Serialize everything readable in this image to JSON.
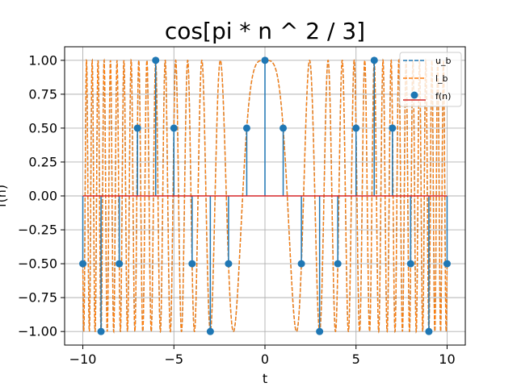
{
  "chart_data": {
    "type": "line",
    "title": "cos[pi * n ^ 2 / 3]",
    "xlabel": "t",
    "ylabel": "f(n)",
    "xlim": [
      -11,
      11
    ],
    "ylim": [
      -1.1,
      1.1
    ],
    "grid": true,
    "legend_placement": "top-right",
    "xticks": [
      -10,
      -5,
      0,
      5,
      10
    ],
    "xtick_labels": [
      "−10",
      "−5",
      "0",
      "5",
      "10"
    ],
    "yticks": [
      1.0,
      0.75,
      0.5,
      0.25,
      0.0,
      -0.25,
      -0.5,
      -0.75,
      -1.0
    ],
    "ytick_labels": [
      "1.00",
      "0.75",
      "0.50",
      "0.25",
      "0.00",
      "−0.25",
      "−0.50",
      "−0.75",
      "−1.00"
    ],
    "series": [
      {
        "name": "u_b",
        "kind": "dashed-line",
        "color": "#1f77b4",
        "function": "cos(pi*t^2/3)",
        "t_range": [
          -10,
          10
        ]
      },
      {
        "name": "l_b",
        "kind": "dashed-line",
        "color": "#ff7f0e",
        "function": "cos(pi*t^2/3)",
        "t_range": [
          -10,
          10
        ]
      },
      {
        "name": "f(n)",
        "kind": "stem",
        "marker_color": "#1f77b4",
        "baseline_color": "#d62728",
        "x": [
          -10,
          -9,
          -8,
          -7,
          -6,
          -5,
          -4,
          -3,
          -2,
          -1,
          0,
          1,
          2,
          3,
          4,
          5,
          6,
          7,
          8,
          9,
          10
        ],
        "y": [
          -0.5,
          -1.0,
          -0.5,
          0.5,
          1.0,
          0.5,
          -0.5,
          -1.0,
          -0.5,
          0.5,
          1.0,
          0.5,
          -0.5,
          -1.0,
          -0.5,
          0.5,
          1.0,
          0.5,
          -0.5,
          -1.0,
          -0.5
        ]
      }
    ],
    "legend": [
      {
        "label": "u_b",
        "style": "dashed",
        "color": "#1f77b4"
      },
      {
        "label": "l_b",
        "style": "dashed",
        "color": "#ff7f0e"
      },
      {
        "label": "f(n)",
        "style": "stem",
        "color": "#1f77b4",
        "line_color": "#d62728"
      }
    ]
  }
}
